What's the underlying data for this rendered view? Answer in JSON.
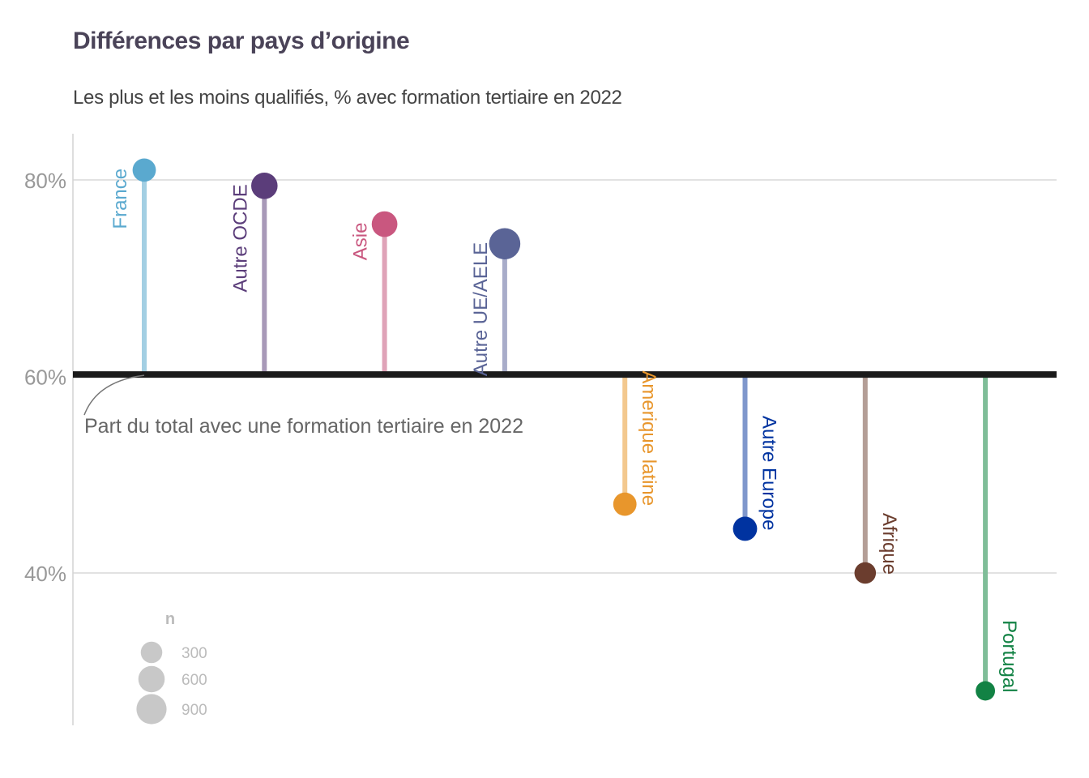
{
  "chart_data": {
    "type": "lollipop",
    "title": "Différences par pays d’origine",
    "subtitle": "Les plus et les moins qualifiés, % avec formation tertiaire en 2022",
    "reference": {
      "value": 60.2,
      "label": "Part du total avec une formation tertiaire en 2022"
    },
    "ylim": [
      25,
      85
    ],
    "yticks": [
      40,
      60,
      80
    ],
    "ytick_labels": [
      "40%",
      "60%",
      "80%"
    ],
    "categories": [
      "France",
      "Autre OCDE",
      "Asie",
      "Autre UE/AELE",
      "Amerique latine",
      "Autre Europe",
      "Afrique",
      "Portugal"
    ],
    "values": [
      81,
      79.4,
      75.5,
      73.5,
      47,
      44.5,
      40,
      28
    ],
    "n": [
      400,
      600,
      550,
      1000,
      400,
      450,
      300,
      200
    ],
    "colors": [
      "#5aa9cf",
      "#5b3d7a",
      "#c9577f",
      "#5a6496",
      "#e8962c",
      "#0033a0",
      "#6b3d2e",
      "#128244"
    ],
    "stem_colors": [
      "#a3cfe3",
      "#a899b8",
      "#dfa3b8",
      "#a8acc9",
      "#f3c88e",
      "#7f97cc",
      "#b49e96",
      "#7fbd98"
    ],
    "size_legend": {
      "title": "n",
      "values": [
        300,
        600,
        900
      ],
      "labels": [
        "300",
        "600",
        "900"
      ]
    }
  }
}
